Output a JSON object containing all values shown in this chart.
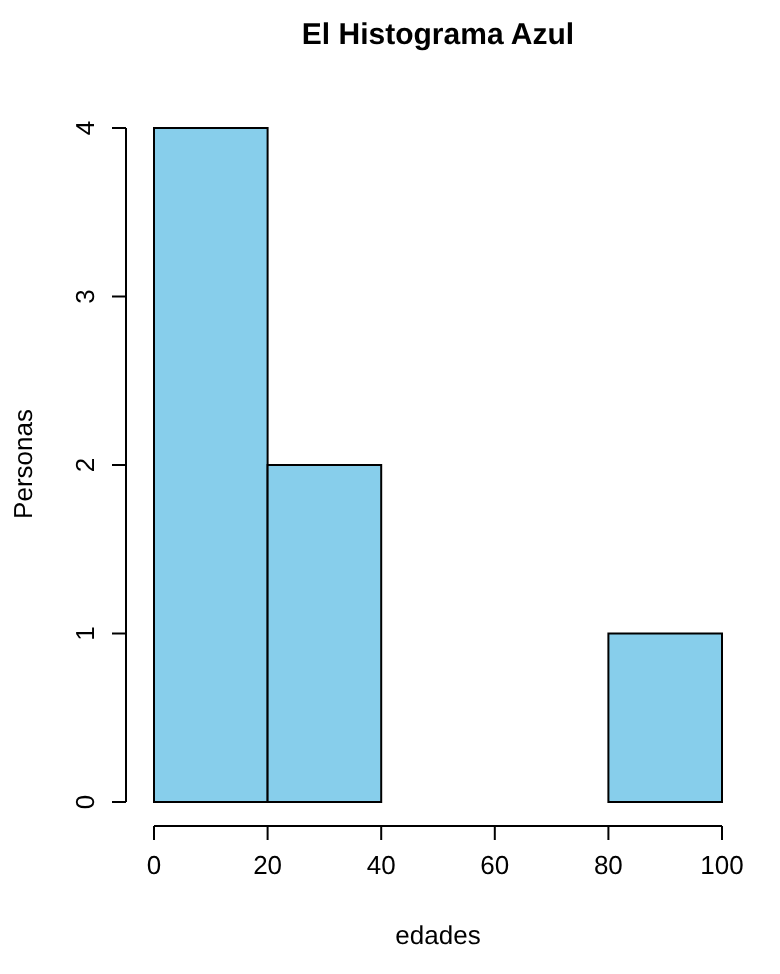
{
  "chart_data": {
    "type": "histogram",
    "title": "El Histograma Azul",
    "xlabel": "edades",
    "ylabel": "Personas",
    "bins": [
      0,
      20,
      40,
      60,
      80,
      100
    ],
    "values": [
      4,
      2,
      0,
      0,
      1
    ],
    "color": "#87ceeb",
    "xlim": [
      0,
      100
    ],
    "xticks": [
      0,
      20,
      40,
      60,
      80,
      100
    ],
    "ylim": [
      0,
      4
    ],
    "yticks": [
      0,
      1,
      2,
      3,
      4
    ],
    "grid": false
  }
}
